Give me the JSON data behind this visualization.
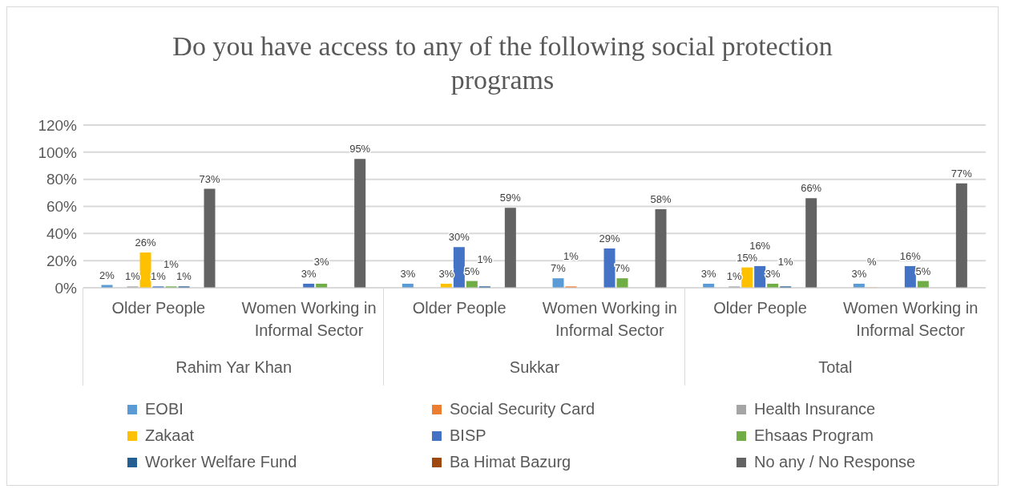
{
  "chart_data": {
    "type": "bar",
    "title": "Do you have access to any of  the following social protection programs",
    "categories": [
      "Older People",
      "Women Working in Informal Sector",
      "Older People",
      "Women Working in Informal Sector",
      "Older People",
      "Women Working in Informal Sector"
    ],
    "annotations": [
      "Rahim Yar Khan",
      "Sukkar",
      "Total"
    ],
    "series": [
      {
        "name": "EOBI",
        "color": "#5b9bd5",
        "values": [
          2,
          null,
          3,
          7,
          3,
          3
        ],
        "value_labels": [
          "2%",
          null,
          "3%",
          "7%",
          "3%",
          "3%"
        ]
      },
      {
        "name": "Social Security Card",
        "color": "#ed7d31",
        "values": [
          null,
          null,
          null,
          1,
          null,
          0.2
        ],
        "value_labels": [
          null,
          null,
          null,
          "1%",
          null,
          "%"
        ]
      },
      {
        "name": "Health Insurance",
        "color": "#a5a5a5",
        "values": [
          1,
          null,
          null,
          null,
          1,
          null
        ],
        "value_labels": [
          "1%",
          null,
          null,
          null,
          "1%",
          null
        ]
      },
      {
        "name": "Zakaat",
        "color": "#ffc000",
        "values": [
          26,
          null,
          3,
          null,
          15,
          null
        ],
        "value_labels": [
          "26%",
          null,
          "3%",
          null,
          "15%",
          null
        ]
      },
      {
        "name": "BISP",
        "color": "#4472c4",
        "values": [
          1,
          3,
          30,
          29,
          16,
          16
        ],
        "value_labels": [
          "1%",
          "3%",
          "30%",
          "29%",
          "16%",
          "16%"
        ]
      },
      {
        "name": "Ehsaas Program",
        "color": "#70ad47",
        "values": [
          1,
          3,
          5,
          7,
          3,
          5
        ],
        "value_labels": [
          "1%",
          "3%",
          "5%",
          "7%",
          "3%",
          "5%"
        ]
      },
      {
        "name": "Worker Welfare Fund",
        "color": "#255e91",
        "values": [
          1,
          null,
          1,
          null,
          1,
          null
        ],
        "value_labels": [
          "1%",
          null,
          "1%",
          null,
          "1%",
          null
        ]
      },
      {
        "name": "Ba Himat Bazurg",
        "color": "#9e480e",
        "values": [
          null,
          null,
          null,
          null,
          null,
          null
        ],
        "value_labels": [
          null,
          null,
          null,
          null,
          null,
          null
        ]
      },
      {
        "name": "No any / No Response",
        "color": "#636363",
        "values": [
          73,
          95,
          59,
          58,
          66,
          77
        ],
        "value_labels": [
          "73%",
          "95%",
          "59%",
          "58%",
          "66%",
          "77%"
        ]
      }
    ],
    "ylim": [
      0,
      120
    ],
    "yticks": [
      {
        "value": 0,
        "label": "0%"
      },
      {
        "value": 20,
        "label": "20%"
      },
      {
        "value": 40,
        "label": "40%"
      },
      {
        "value": 60,
        "label": "60%"
      },
      {
        "value": 80,
        "label": "80%"
      },
      {
        "value": 100,
        "label": "100%"
      },
      {
        "value": 120,
        "label": "120%"
      }
    ],
    "grid": "y",
    "legend": "bottom"
  }
}
